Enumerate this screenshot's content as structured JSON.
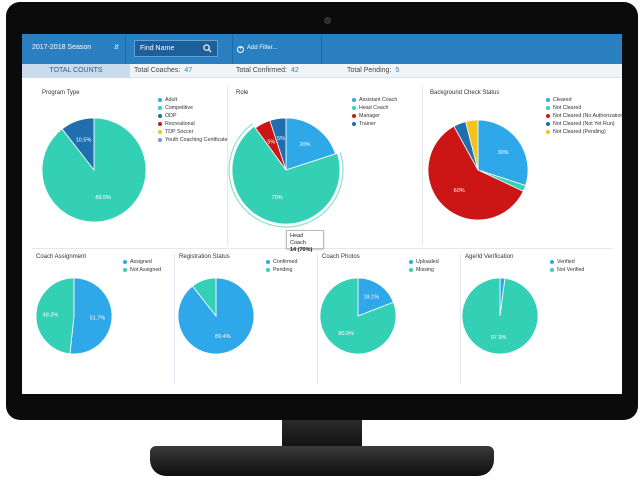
{
  "toolbar": {
    "season": "2017-2018 Season",
    "search_placeholder": "Find Name",
    "add_filter": "Add Filter..."
  },
  "counts": {
    "total_counts_label": "TOTAL COUNTS",
    "coaches_label": "Total Coaches:",
    "coaches": "47",
    "confirmed_label": "Total Confirmed:",
    "confirmed": "42",
    "pending_label": "Total Pending:",
    "pending": "5"
  },
  "colors": {
    "accent": "#2a7fc1",
    "teal": "#34d0b6",
    "blue": "#2fa8ea",
    "dark_blue": "#1f6fae",
    "red": "#cc1616",
    "yellow": "#f2c318",
    "periwinkle": "#7f93e0"
  },
  "tooltip": {
    "title": "Head Coach",
    "value": "14 (70%)"
  },
  "chart_data": [
    {
      "type": "pie",
      "title": "Program Type",
      "legend": [
        "Adult",
        "Competitive",
        "ODP",
        "Recreational",
        "TDP Soccer",
        "Youth Coaching Certificate"
      ],
      "legend_colors": [
        "#2fa8ea",
        "#34d0b6",
        "#1f6fae",
        "#cc1616",
        "#f2c318",
        "#7f93e0"
      ],
      "slices": [
        {
          "label": "Competitive",
          "value": 89.5,
          "color": "#34d0b6",
          "text": "89.5%"
        },
        {
          "label": "ODP",
          "value": 10.5,
          "color": "#1f6fae",
          "text": "10.5%"
        }
      ]
    },
    {
      "type": "pie",
      "title": "Role",
      "legend": [
        "Assistant Coach",
        "Head Coach",
        "Manager",
        "Trainer"
      ],
      "legend_colors": [
        "#2fa8ea",
        "#34d0b6",
        "#cc1616",
        "#1f6fae"
      ],
      "slices": [
        {
          "label": "Assistant Coach",
          "value": 20,
          "color": "#2fa8ea",
          "text": "20%"
        },
        {
          "label": "Head Coach",
          "value": 70,
          "color": "#34d0b6",
          "text": "70%"
        },
        {
          "label": "Manager",
          "value": 5,
          "color": "#cc1616",
          "text": "5%"
        },
        {
          "label": "Trainer",
          "value": 5,
          "color": "#1f6fae",
          "text": "5%"
        }
      ]
    },
    {
      "type": "pie",
      "title": "Background Check Status",
      "legend": [
        "Cleared",
        "Not Cleared",
        "Not Cleared (No Authorization)",
        "Not Cleared (Not Yet Run)",
        "Not Cleared (Pending)"
      ],
      "legend_colors": [
        "#2fa8ea",
        "#34d0b6",
        "#cc1616",
        "#1f6fae",
        "#f2c318"
      ],
      "slices": [
        {
          "label": "Cleared",
          "value": 30,
          "color": "#2fa8ea",
          "text": "30%"
        },
        {
          "label": "Not Cleared",
          "value": 2,
          "color": "#34d0b6",
          "text": ""
        },
        {
          "label": "Not Cleared (No Authorization)",
          "value": 60,
          "color": "#cc1616",
          "text": "60%"
        },
        {
          "label": "Not Cleared (Not Yet Run)",
          "value": 4,
          "color": "#1f6fae",
          "text": ""
        },
        {
          "label": "Not Cleared (Pending)",
          "value": 4,
          "color": "#f2c318",
          "text": ""
        }
      ]
    },
    {
      "type": "pie",
      "title": "Coach Assignment",
      "legend": [
        "Assigned",
        "Not Assigned"
      ],
      "legend_colors": [
        "#2fa8ea",
        "#34d0b6"
      ],
      "slices": [
        {
          "label": "Assigned",
          "value": 51.7,
          "color": "#2fa8ea",
          "text": "51.7%"
        },
        {
          "label": "Not Assigned",
          "value": 48.3,
          "color": "#34d0b6",
          "text": "48.3%"
        }
      ]
    },
    {
      "type": "pie",
      "title": "Registration Status",
      "legend": [
        "Confirmed",
        "Pending"
      ],
      "legend_colors": [
        "#2fa8ea",
        "#34d0b6"
      ],
      "slices": [
        {
          "label": "Confirmed",
          "value": 89.4,
          "color": "#2fa8ea",
          "text": "89.4%"
        },
        {
          "label": "Pending",
          "value": 10.6,
          "color": "#34d0b6",
          "text": ""
        }
      ]
    },
    {
      "type": "pie",
      "title": "Coach Photos",
      "legend": [
        "Uploaded",
        "Missing"
      ],
      "legend_colors": [
        "#2fa8ea",
        "#34d0b6"
      ],
      "slices": [
        {
          "label": "Uploaded",
          "value": 19.1,
          "color": "#2fa8ea",
          "text": "19.1%"
        },
        {
          "label": "Missing",
          "value": 80.9,
          "color": "#34d0b6",
          "text": "80.9%"
        }
      ]
    },
    {
      "type": "pie",
      "title": "Age/Id Verification",
      "legend": [
        "Verified",
        "Not Verified"
      ],
      "legend_colors": [
        "#2fa8ea",
        "#34d0b6"
      ],
      "slices": [
        {
          "label": "Verified",
          "value": 2.1,
          "color": "#2fa8ea",
          "text": ""
        },
        {
          "label": "Not Verified",
          "value": 97.9,
          "color": "#34d0b6",
          "text": "97.9%"
        }
      ]
    }
  ]
}
